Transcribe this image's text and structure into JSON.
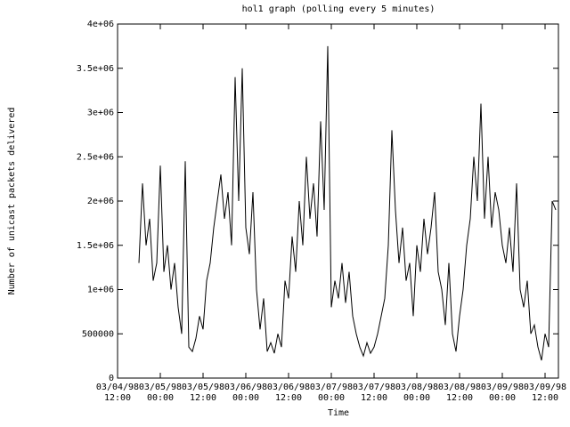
{
  "chart_data": {
    "type": "line",
    "title": "hol1 graph (polling every 5 minutes)",
    "x_label": "Time",
    "y_label": "Number of unicast packets delivered",
    "color": "#000000",
    "grid": false,
    "xlim": [
      0,
      123.75
    ],
    "xticks": [
      {
        "value": 0,
        "label": "03/04/98\n12:00"
      },
      {
        "value": 12,
        "label": "03/05/98\n00:00"
      },
      {
        "value": 24,
        "label": "03/05/98\n12:00"
      },
      {
        "value": 36,
        "label": "03/06/98\n00:00"
      },
      {
        "value": 48,
        "label": "03/06/98\n12:00"
      },
      {
        "value": 60,
        "label": "03/07/98\n00:00"
      },
      {
        "value": 72,
        "label": "03/07/98\n12:00"
      },
      {
        "value": 84,
        "label": "03/08/98\n00:00"
      },
      {
        "value": 96,
        "label": "03/08/98\n12:00"
      },
      {
        "value": 108,
        "label": "03/09/98\n00:00"
      },
      {
        "value": 120,
        "label": "03/09/98\n12:00"
      }
    ],
    "ylim": [
      0,
      4000000
    ],
    "yticks": [
      0,
      500000,
      {
        "value": 1000000,
        "label": "1e+06"
      },
      {
        "value": 1500000,
        "label": "1.5e+06"
      },
      {
        "value": 2000000,
        "label": "2e+06"
      },
      {
        "value": 2500000,
        "label": "2.5e+06"
      },
      {
        "value": 3000000,
        "label": "3e+06"
      },
      {
        "value": 3500000,
        "label": "3.5e+06"
      },
      {
        "value": 4000000,
        "label": "4e+06"
      }
    ],
    "x": [
      6,
      7,
      8,
      9,
      10,
      11,
      12,
      13,
      14,
      15,
      16,
      17,
      18,
      19,
      20,
      21,
      22,
      23,
      24,
      25,
      26,
      27,
      28,
      29,
      30,
      31,
      32,
      33,
      34,
      35,
      36,
      37,
      38,
      39,
      40,
      41,
      42,
      43,
      44,
      45,
      46,
      47,
      48,
      49,
      50,
      51,
      52,
      53,
      54,
      55,
      56,
      57,
      58,
      59,
      60,
      61,
      62,
      63,
      64,
      65,
      66,
      67,
      68,
      69,
      70,
      71,
      72,
      73,
      74,
      75,
      76,
      77,
      78,
      79,
      80,
      81,
      82,
      83,
      84,
      85,
      86,
      87,
      88,
      89,
      90,
      91,
      92,
      93,
      94,
      95,
      96,
      97,
      98,
      99,
      100,
      101,
      102,
      103,
      104,
      105,
      106,
      107,
      108,
      109,
      110,
      111,
      112,
      113,
      114,
      115,
      116,
      117,
      118,
      119,
      120,
      121,
      122,
      123
    ],
    "values": [
      1300000,
      2200000,
      1500000,
      1800000,
      1100000,
      1300000,
      2400000,
      1200000,
      1500000,
      1000000,
      1300000,
      800000,
      500000,
      2450000,
      350000,
      300000,
      450000,
      700000,
      550000,
      1100000,
      1300000,
      1700000,
      2000000,
      2300000,
      1800000,
      2100000,
      1500000,
      3400000,
      2000000,
      3500000,
      1700000,
      1400000,
      2100000,
      1000000,
      550000,
      900000,
      300000,
      400000,
      280000,
      500000,
      350000,
      1100000,
      900000,
      1600000,
      1200000,
      2000000,
      1500000,
      2500000,
      1800000,
      2200000,
      1600000,
      2900000,
      1900000,
      3750000,
      800000,
      1100000,
      900000,
      1300000,
      850000,
      1200000,
      700000,
      500000,
      350000,
      250000,
      400000,
      280000,
      350000,
      500000,
      700000,
      900000,
      1500000,
      2800000,
      1900000,
      1300000,
      1700000,
      1100000,
      1300000,
      700000,
      1500000,
      1200000,
      1800000,
      1400000,
      1700000,
      2100000,
      1200000,
      1000000,
      600000,
      1300000,
      500000,
      300000,
      700000,
      1000000,
      1500000,
      1800000,
      2500000,
      2000000,
      3100000,
      1800000,
      2500000,
      1700000,
      2100000,
      1900000,
      1500000,
      1300000,
      1700000,
      1200000,
      2200000,
      1000000,
      800000,
      1100000,
      500000,
      600000,
      350000,
      200000,
      500000,
      350000,
      2000000,
      1900000
    ]
  }
}
